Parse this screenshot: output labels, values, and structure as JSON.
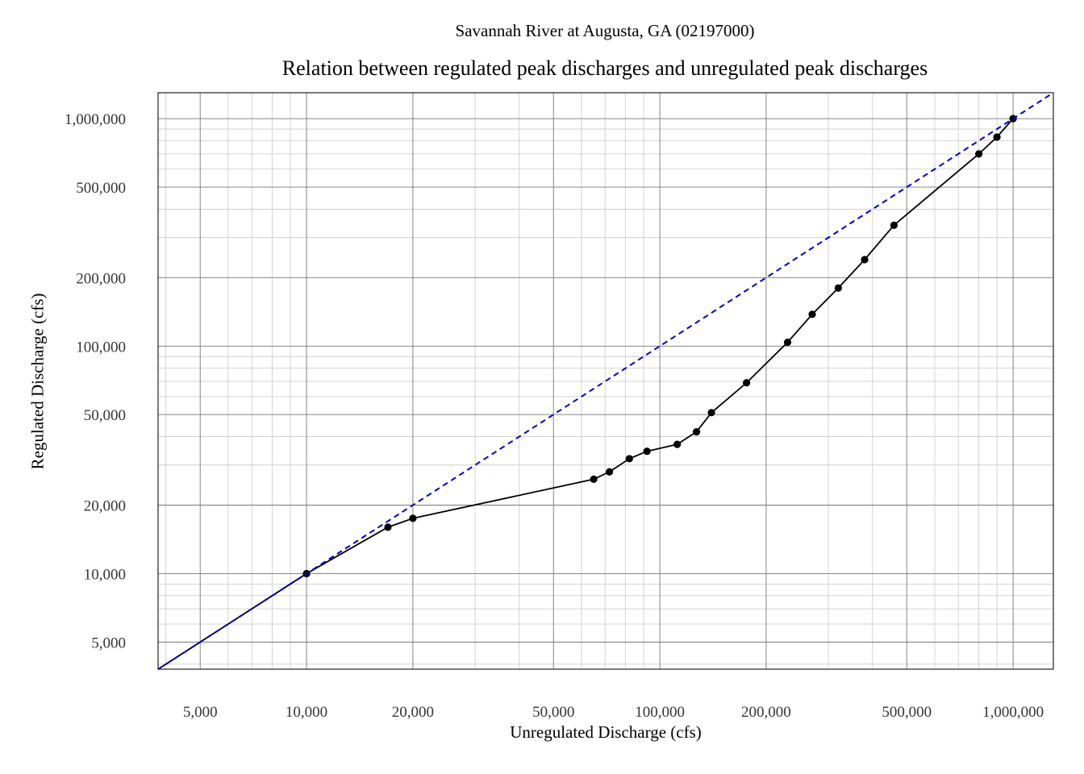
{
  "chart_data": {
    "type": "line",
    "subtitle": "Savannah River at Augusta, GA (02197000)",
    "title": "Relation between regulated peak discharges and unregulated peak discharges",
    "xlabel": "Unregulated Discharge (cfs)",
    "ylabel": "Regulated Discharge (cfs)",
    "x_scale": "log",
    "y_scale": "log",
    "xlim": [
      3800,
      1300000
    ],
    "ylim": [
      3800,
      1300000
    ],
    "grid": true,
    "x_ticks": [
      {
        "value": 5000,
        "label": "5,000"
      },
      {
        "value": 10000,
        "label": "10,000"
      },
      {
        "value": 20000,
        "label": "20,000"
      },
      {
        "value": 50000,
        "label": "50,000"
      },
      {
        "value": 100000,
        "label": "100,000"
      },
      {
        "value": 200000,
        "label": "200,000"
      },
      {
        "value": 500000,
        "label": "500,000"
      },
      {
        "value": 1000000,
        "label": "1,000,000"
      }
    ],
    "y_ticks": [
      {
        "value": 5000,
        "label": "5,000"
      },
      {
        "value": 10000,
        "label": "10,000"
      },
      {
        "value": 20000,
        "label": "20,000"
      },
      {
        "value": 50000,
        "label": "50,000"
      },
      {
        "value": 100000,
        "label": "100,000"
      },
      {
        "value": 200000,
        "label": "200,000"
      },
      {
        "value": 500000,
        "label": "500,000"
      },
      {
        "value": 1000000,
        "label": "1,000,000"
      }
    ],
    "series": [
      {
        "style": "line-with-markers",
        "color": "#000000",
        "points": [
          [
            3800,
            3800
          ],
          [
            10000,
            10000
          ],
          [
            17000,
            16000
          ],
          [
            20000,
            17500
          ],
          [
            65000,
            26000
          ],
          [
            72000,
            28000
          ],
          [
            82000,
            32000
          ],
          [
            92000,
            34500
          ],
          [
            112000,
            37000
          ],
          [
            127000,
            42000
          ],
          [
            140000,
            51000
          ],
          [
            176000,
            69000
          ],
          [
            230000,
            104000
          ],
          [
            270000,
            138000
          ],
          [
            320000,
            180000
          ],
          [
            380000,
            240000
          ],
          [
            460000,
            340000
          ],
          [
            800000,
            700000
          ],
          [
            900000,
            830000
          ],
          [
            1000000,
            1000000
          ]
        ],
        "marker_points": [
          [
            10000,
            10000
          ],
          [
            17000,
            16000
          ],
          [
            20000,
            17500
          ],
          [
            65000,
            26000
          ],
          [
            72000,
            28000
          ],
          [
            82000,
            32000
          ],
          [
            92000,
            34500
          ],
          [
            112000,
            37000
          ],
          [
            127000,
            42000
          ],
          [
            140000,
            51000
          ],
          [
            176000,
            69000
          ],
          [
            230000,
            104000
          ],
          [
            270000,
            138000
          ],
          [
            320000,
            180000
          ],
          [
            380000,
            240000
          ],
          [
            460000,
            340000
          ],
          [
            800000,
            700000
          ],
          [
            900000,
            830000
          ],
          [
            1000000,
            1000000
          ]
        ]
      },
      {
        "style": "dashed",
        "color": "#0000cc",
        "points": [
          [
            3800,
            3800
          ],
          [
            1300000,
            1300000
          ]
        ]
      }
    ]
  }
}
